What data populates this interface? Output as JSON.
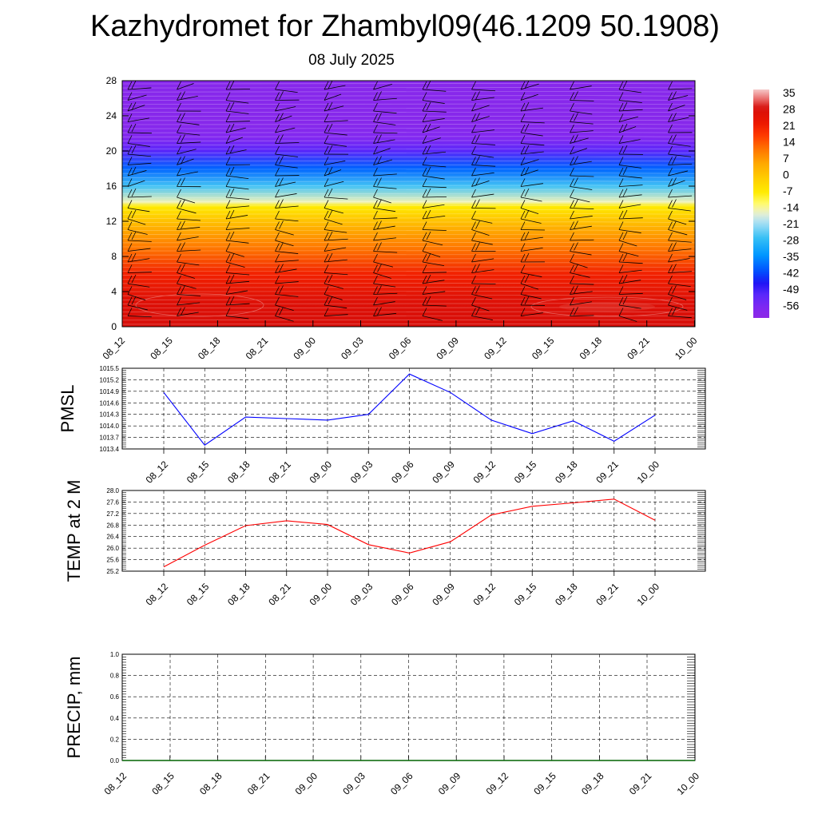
{
  "title": "Kazhydromet for Zhambyl09(46.1209 50.1908)",
  "subtitle": "08 July 2025",
  "colors": {
    "pmsl_line": "#0000ff",
    "temp_line": "#ff0000",
    "precip_line": "#006400",
    "grid": "#000000"
  },
  "chart_data": [
    {
      "type": "heatmap",
      "title": "",
      "xlabel": "",
      "ylabel": "",
      "x_tick_labels": [
        "08_12",
        "08_15",
        "08_18",
        "08_21",
        "09_00",
        "09_03",
        "09_06",
        "09_09",
        "09_12",
        "09_15",
        "09_18",
        "09_21",
        "10_00"
      ],
      "y_ticks": [
        "0",
        "4",
        "8",
        "12",
        "16",
        "20",
        "24",
        "28"
      ],
      "ylim": [
        0,
        28
      ],
      "colorbar": {
        "labels": [
          "35",
          "28",
          "21",
          "14",
          "7",
          "0",
          "-7",
          "-14",
          "-21",
          "-28",
          "-35",
          "-42",
          "-49",
          "-56"
        ],
        "range": [
          -60,
          38
        ]
      },
      "temperature_profile": [
        {
          "level": 0,
          "value": 30
        },
        {
          "level": 3,
          "value": 28
        },
        {
          "level": 6,
          "value": 22
        },
        {
          "level": 9,
          "value": 12
        },
        {
          "level": 12,
          "value": 2
        },
        {
          "level": 13.7,
          "value": -6
        },
        {
          "level": 14.2,
          "value": -14
        },
        {
          "level": 16,
          "value": -25
        },
        {
          "level": 18,
          "value": -38
        },
        {
          "level": 20,
          "value": -50
        },
        {
          "level": 21.5,
          "value": -56
        },
        {
          "level": 23,
          "value": -58
        },
        {
          "level": 28,
          "value": -58
        }
      ],
      "wind_barbs": "shown"
    },
    {
      "type": "line",
      "ylabel": "PMSL",
      "categories": [
        "08_12",
        "08_15",
        "08_18",
        "08_21",
        "09_00",
        "09_03",
        "09_06",
        "09_09",
        "09_12",
        "09_15",
        "09_18",
        "09_21",
        "10_00"
      ],
      "y_ticks": [
        "1015.5",
        "1015.2",
        "1014.9",
        "1014.6",
        "1014.3",
        "1014.0",
        "1013.7",
        "1013.4"
      ],
      "ylim": [
        1013.4,
        1015.5
      ],
      "series": [
        {
          "values": [
            1014.87,
            1013.5,
            1014.23,
            1014.19,
            1014.15,
            1014.3,
            1015.35,
            1014.87,
            1014.15,
            1013.8,
            1014.13,
            1013.6,
            1014.28
          ]
        }
      ],
      "grid": true
    },
    {
      "type": "line",
      "ylabel": "TEMP at 2 M",
      "categories": [
        "08_12",
        "08_15",
        "08_18",
        "08_21",
        "09_00",
        "09_03",
        "09_06",
        "09_09",
        "09_12",
        "09_15",
        "09_18",
        "09_21",
        "10_00"
      ],
      "y_ticks": [
        "28.0",
        "27.6",
        "27.2",
        "26.8",
        "26.4",
        "26.0",
        "25.6",
        "25.2"
      ],
      "ylim": [
        25.2,
        28.0
      ],
      "series": [
        {
          "values": [
            25.35,
            26.1,
            26.78,
            26.95,
            26.82,
            26.12,
            25.83,
            26.22,
            27.15,
            27.45,
            27.57,
            27.7,
            26.97
          ]
        }
      ],
      "grid": true
    },
    {
      "type": "line",
      "ylabel": "PRECIP, mm",
      "categories": [
        "08_12",
        "08_15",
        "08_18",
        "08_21",
        "09_00",
        "09_03",
        "09_06",
        "09_09",
        "09_12",
        "09_15",
        "09_18",
        "09_21",
        "10_00"
      ],
      "y_ticks": [
        "1.0",
        "0.8",
        "0.6",
        "0.4",
        "0.2",
        "0.0"
      ],
      "ylim": [
        0,
        1.0
      ],
      "series": [
        {
          "values": [
            0,
            0,
            0,
            0,
            0,
            0,
            0,
            0,
            0,
            0,
            0,
            0,
            0
          ]
        }
      ],
      "grid": true
    }
  ]
}
